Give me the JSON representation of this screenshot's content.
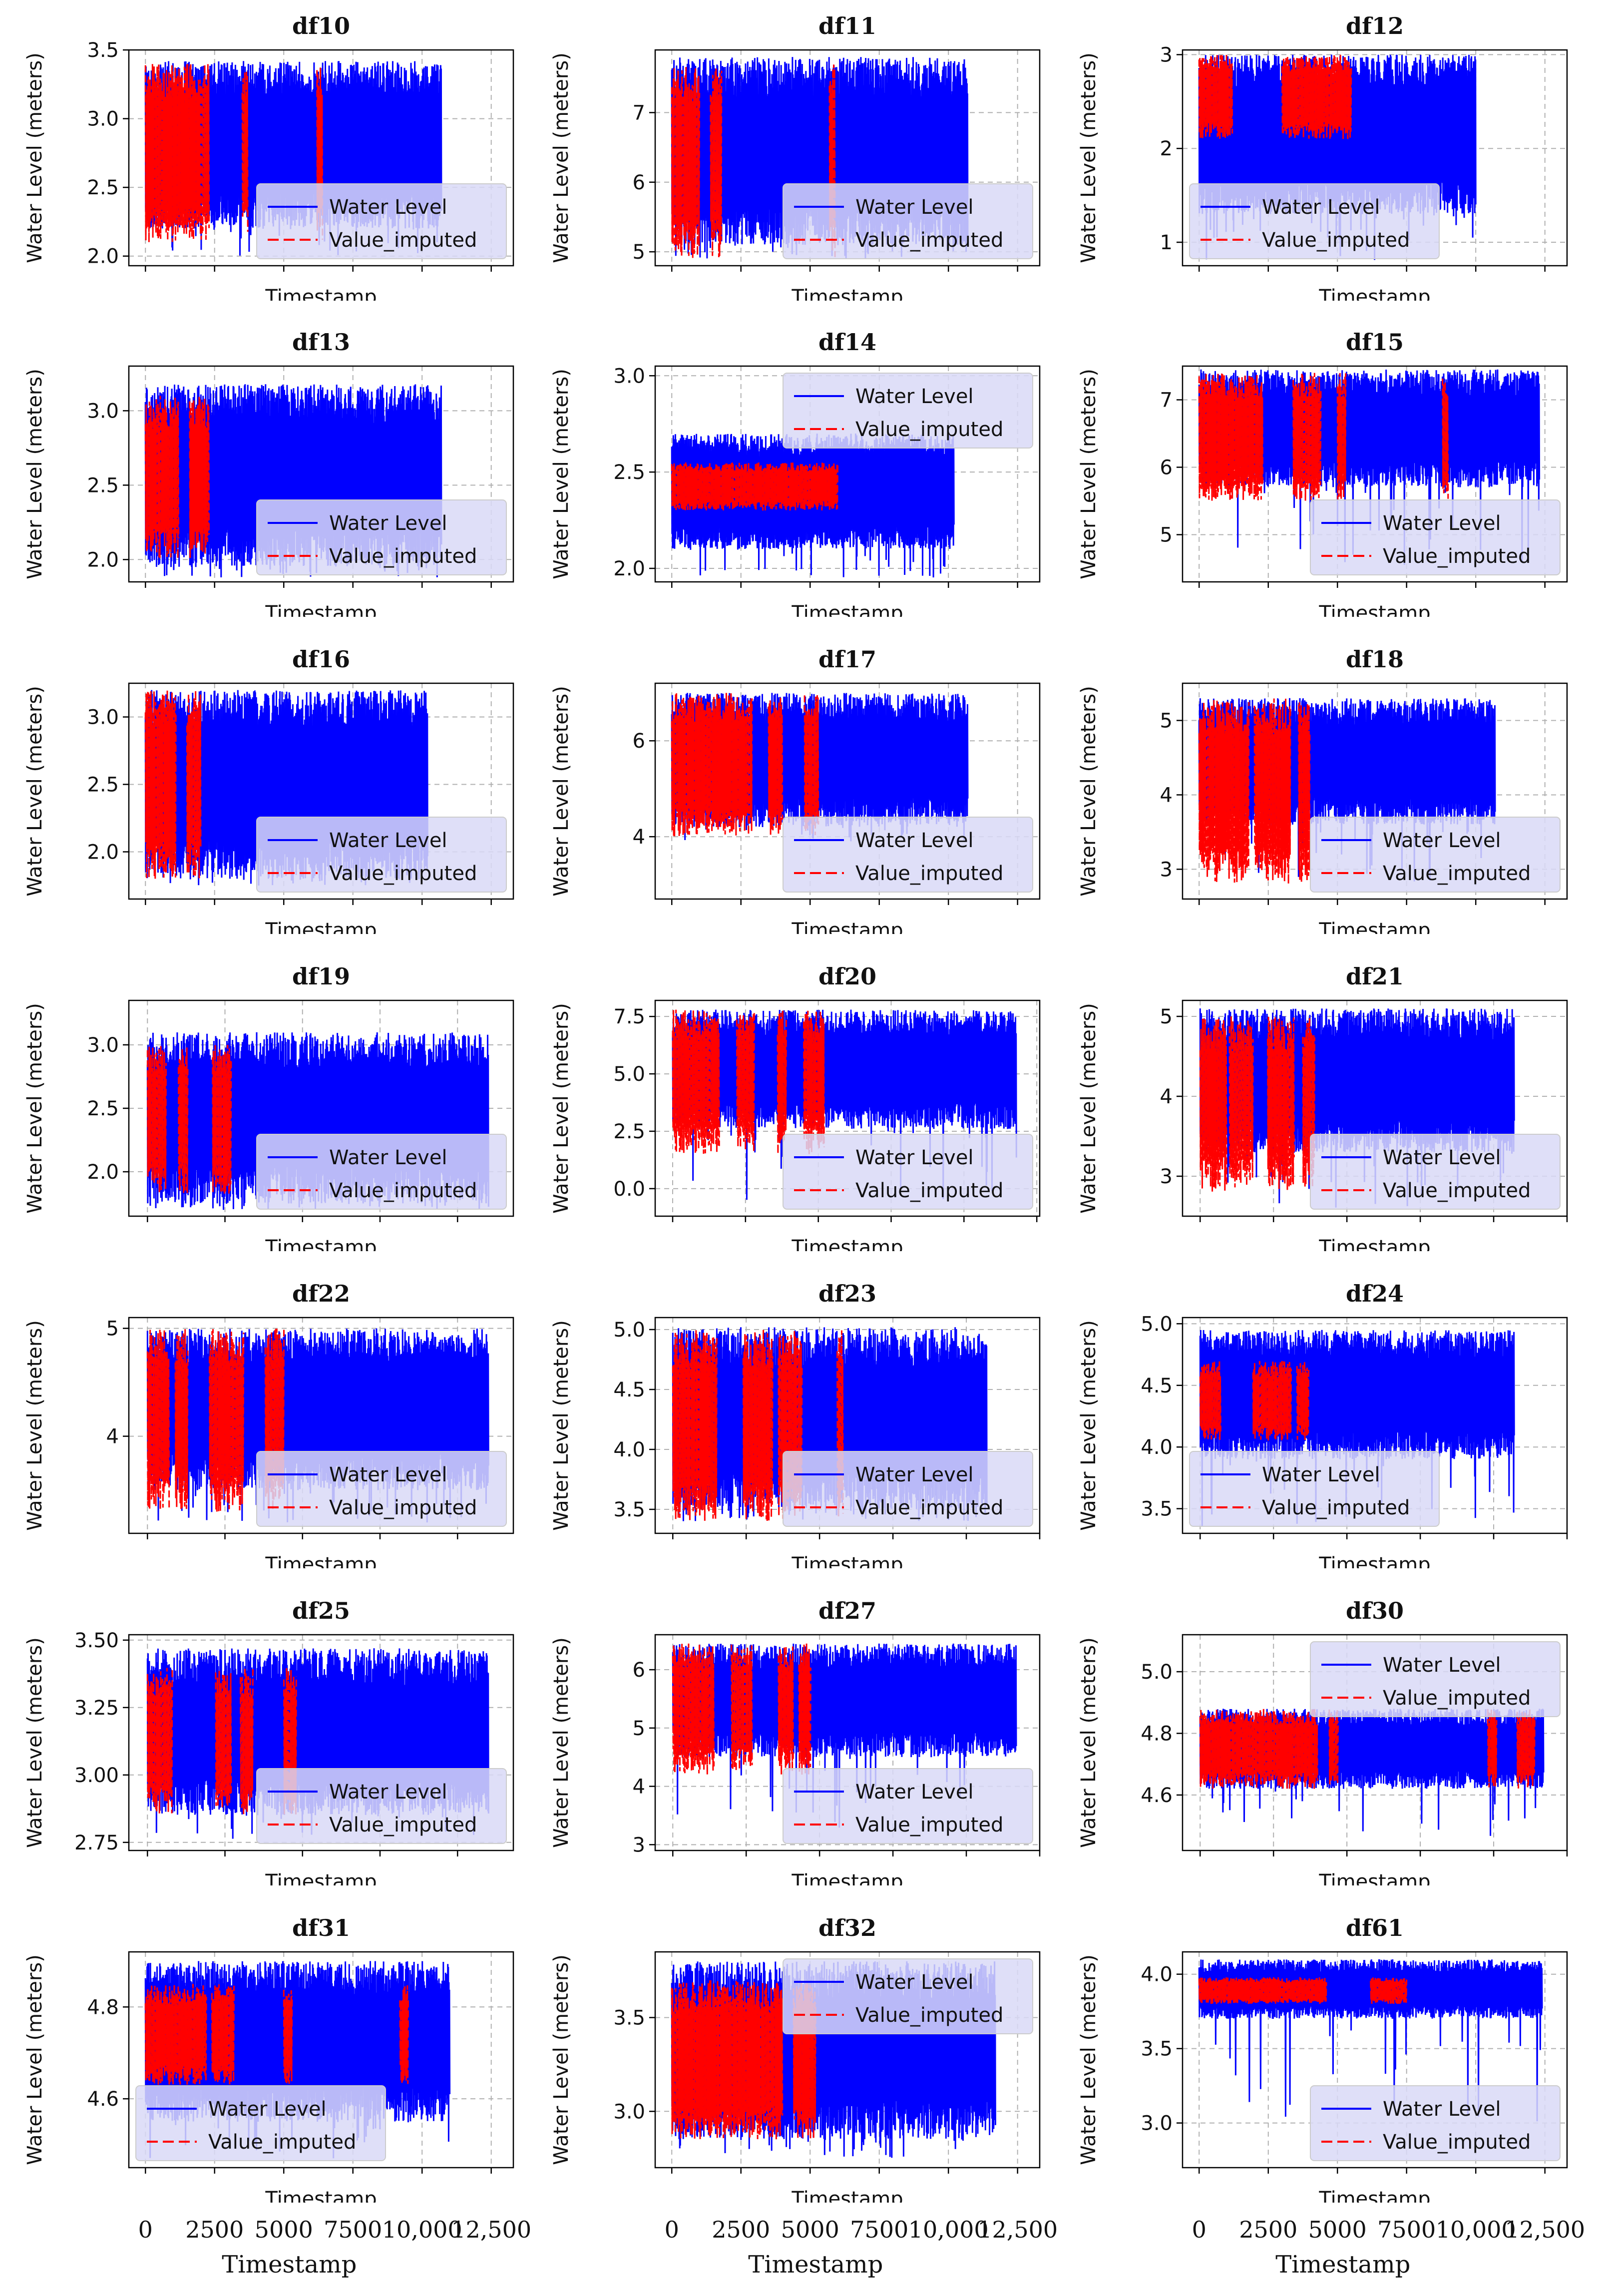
{
  "figure": {
    "colors": {
      "water_level": "#0000ff",
      "imputed": "#ff0000",
      "grid": "#b0b0b0",
      "legend_bg": "#d9d9f7"
    },
    "bottom_ticks": [
      "0",
      "2500",
      "5000",
      "7500",
      "10,000",
      "12,500"
    ],
    "bottom_xlabel": "Timestamp"
  },
  "chart_data": [
    {
      "type": "line",
      "title": "df10",
      "ylabel": "Water Level (meters)",
      "xlabel": "Timestamp",
      "ylim": [
        1.93,
        3.5
      ],
      "yticks": [
        "2.0",
        "2.5",
        "3.0",
        "3.5"
      ],
      "ytick_values": [
        2.0,
        2.5,
        3.0,
        3.5
      ],
      "xlim": [
        -600,
        13300
      ],
      "x_end": 10700,
      "legend_pos": "lower-right",
      "series": [
        {
          "name": "Water Level",
          "low": 2.2,
          "high": 3.42,
          "ext_low": 2.0
        },
        {
          "name": "Value_imputed",
          "bands": [
            [
              0,
              2300
            ],
            [
              3500,
              3700
            ],
            [
              6200,
              6400
            ]
          ],
          "low": 2.1,
          "high": 3.4
        }
      ]
    },
    {
      "type": "line",
      "title": "df11",
      "ylabel": "Water Level (meters)",
      "xlabel": "Timestamp",
      "ylim": [
        4.8,
        7.9
      ],
      "yticks": [
        "5",
        "6",
        "7"
      ],
      "ytick_values": [
        5,
        6,
        7
      ],
      "xlim": [
        -600,
        13300
      ],
      "x_end": 10700,
      "legend_pos": "lower-right",
      "series": [
        {
          "name": "Water Level",
          "low": 5.1,
          "high": 7.8,
          "ext_low": 4.9
        },
        {
          "name": "Value_imputed",
          "bands": [
            [
              0,
              1000
            ],
            [
              1400,
              1800
            ],
            [
              5700,
              5900
            ]
          ],
          "low": 4.9,
          "high": 7.7
        }
      ]
    },
    {
      "type": "line",
      "title": "df12",
      "ylabel": "Water Level (meters)",
      "xlabel": "Timestamp",
      "ylim": [
        0.75,
        3.05
      ],
      "yticks": [
        "1",
        "2",
        "3"
      ],
      "ytick_values": [
        1,
        2,
        3
      ],
      "xlim": [
        -600,
        13300
      ],
      "x_end": 10000,
      "legend_pos": "lower-left",
      "series": [
        {
          "name": "Water Level",
          "low": 1.3,
          "high": 3.0,
          "ext_low": 0.8
        },
        {
          "name": "Value_imputed",
          "bands": [
            [
              0,
              1200
            ],
            [
              3000,
              5500
            ]
          ],
          "low": 2.1,
          "high": 3.0
        }
      ]
    },
    {
      "type": "line",
      "title": "df13",
      "ylabel": "Water Level (meters)",
      "xlabel": "Timestamp",
      "ylim": [
        1.85,
        3.3
      ],
      "yticks": [
        "2.0",
        "2.5",
        "3.0"
      ],
      "ytick_values": [
        2.0,
        2.5,
        3.0
      ],
      "xlim": [
        -600,
        13300
      ],
      "x_end": 10700,
      "legend_pos": "lower-right",
      "series": [
        {
          "name": "Water Level",
          "low": 1.95,
          "high": 3.18,
          "ext_low": 1.88
        },
        {
          "name": "Value_imputed",
          "bands": [
            [
              0,
              1200
            ],
            [
              1600,
              2300
            ]
          ],
          "low": 2.0,
          "high": 3.1
        }
      ]
    },
    {
      "type": "line",
      "title": "df14",
      "ylabel": "Water Level (meters)",
      "xlabel": "Timestamp",
      "ylim": [
        1.93,
        3.05
      ],
      "yticks": [
        "2.0",
        "2.5",
        "3.0"
      ],
      "ytick_values": [
        2.0,
        2.5,
        3.0
      ],
      "xlim": [
        -600,
        13300
      ],
      "x_end": 10200,
      "legend_pos": "top-right",
      "series": [
        {
          "name": "Water Level",
          "low": 2.1,
          "high": 2.7,
          "ext_low": 1.95
        },
        {
          "name": "Value_imputed",
          "bands": [
            [
              0,
              6000
            ]
          ],
          "low": 2.3,
          "high": 2.55
        }
      ]
    },
    {
      "type": "line",
      "title": "df15",
      "ylabel": "Water Level (meters)",
      "xlabel": "Timestamp",
      "ylim": [
        4.3,
        7.5
      ],
      "yticks": [
        "5",
        "6",
        "7"
      ],
      "ytick_values": [
        5,
        6,
        7
      ],
      "xlim": [
        -600,
        13300
      ],
      "x_end": 12300,
      "legend_pos": "lower-right",
      "series": [
        {
          "name": "Water Level",
          "low": 5.7,
          "high": 7.45,
          "ext_low": 4.5
        },
        {
          "name": "Value_imputed",
          "bands": [
            [
              0,
              2300
            ],
            [
              3400,
              4400
            ],
            [
              5000,
              5300
            ],
            [
              8800,
              9000
            ]
          ],
          "low": 5.5,
          "high": 7.4
        }
      ]
    },
    {
      "type": "line",
      "title": "df16",
      "ylabel": "Water Level (meters)",
      "xlabel": "Timestamp",
      "ylim": [
        1.65,
        3.25
      ],
      "yticks": [
        "2.0",
        "2.5",
        "3.0"
      ],
      "ytick_values": [
        2.0,
        2.5,
        3.0
      ],
      "xlim": [
        -600,
        13300
      ],
      "x_end": 10200,
      "legend_pos": "lower-right",
      "series": [
        {
          "name": "Water Level",
          "low": 1.8,
          "high": 3.2,
          "ext_low": 1.75
        },
        {
          "name": "Value_imputed",
          "bands": [
            [
              0,
              1100
            ],
            [
              1500,
              2000
            ]
          ],
          "low": 1.8,
          "high": 3.2
        }
      ]
    },
    {
      "type": "line",
      "title": "df17",
      "ylabel": "Water Level (meters)",
      "xlabel": "Timestamp",
      "ylim": [
        2.7,
        7.2
      ],
      "yticks": [
        "4",
        "6"
      ],
      "ytick_values": [
        4,
        6
      ],
      "xlim": [
        -600,
        13300
      ],
      "x_end": 10700,
      "legend_pos": "lower-right",
      "series": [
        {
          "name": "Water Level",
          "low": 4.2,
          "high": 7.0,
          "ext_low": 3.9
        },
        {
          "name": "Value_imputed",
          "bands": [
            [
              0,
              2900
            ],
            [
              3500,
              4000
            ],
            [
              4800,
              5300
            ]
          ],
          "low": 4.0,
          "high": 7.0
        }
      ]
    },
    {
      "type": "line",
      "title": "df18",
      "ylabel": "Water Level (meters)",
      "xlabel": "Timestamp",
      "ylim": [
        2.6,
        5.5
      ],
      "yticks": [
        "3",
        "4",
        "5"
      ],
      "ytick_values": [
        3,
        4,
        5
      ],
      "xlim": [
        -600,
        13300
      ],
      "x_end": 10700,
      "legend_pos": "lower-right",
      "series": [
        {
          "name": "Water Level",
          "low": 3.6,
          "high": 5.3,
          "ext_low": 2.8
        },
        {
          "name": "Value_imputed",
          "bands": [
            [
              0,
              1800
            ],
            [
              2000,
              3300
            ],
            [
              3600,
              4000
            ]
          ],
          "low": 2.8,
          "high": 5.3
        }
      ]
    },
    {
      "type": "line",
      "title": "df19",
      "ylabel": "Water Level (meters)",
      "xlabel": "Timestamp",
      "ylim": [
        1.65,
        3.35
      ],
      "yticks": [
        "2.0",
        "2.5",
        "3.0"
      ],
      "ytick_values": [
        2.0,
        2.5,
        3.0
      ],
      "xlim": [
        -600,
        11800
      ],
      "x_end": 11000,
      "legend_pos": "lower-right",
      "series": [
        {
          "name": "Water Level",
          "low": 1.75,
          "high": 3.1,
          "ext_low": 1.7
        },
        {
          "name": "Value_imputed",
          "bands": [
            [
              0,
              600
            ],
            [
              1000,
              1300
            ],
            [
              2100,
              2700
            ]
          ],
          "low": 1.8,
          "high": 3.0
        }
      ]
    },
    {
      "type": "line",
      "title": "df20",
      "ylabel": "Water Level (meters)",
      "xlabel": "Timestamp",
      "ylim": [
        -1.2,
        8.2
      ],
      "yticks": [
        "0.0",
        "2.5",
        "5.0",
        "7.5"
      ],
      "ytick_values": [
        0.0,
        2.5,
        5.0,
        7.5
      ],
      "xlim": [
        -600,
        12600
      ],
      "x_end": 11800,
      "legend_pos": "lower-right",
      "series": [
        {
          "name": "Water Level",
          "low": 2.6,
          "high": 7.8,
          "ext_low": -0.5
        },
        {
          "name": "Value_imputed",
          "bands": [
            [
              0,
              1600
            ],
            [
              2200,
              2800
            ],
            [
              3600,
              3900
            ],
            [
              4500,
              5200
            ]
          ],
          "low": 1.5,
          "high": 7.8
        }
      ]
    },
    {
      "type": "line",
      "title": "df21",
      "ylabel": "Water Level (meters)",
      "xlabel": "Timestamp",
      "ylim": [
        2.5,
        5.2
      ],
      "yticks": [
        "3",
        "4",
        "5"
      ],
      "ytick_values": [
        3,
        4,
        5
      ],
      "xlim": [
        -600,
        12500
      ],
      "x_end": 10700,
      "legend_pos": "lower-right",
      "series": [
        {
          "name": "Water Level",
          "low": 3.3,
          "high": 5.1,
          "ext_low": 2.6
        },
        {
          "name": "Value_imputed",
          "bands": [
            [
              0,
              900
            ],
            [
              1000,
              1800
            ],
            [
              2300,
              3200
            ],
            [
              3500,
              3900
            ]
          ],
          "low": 2.8,
          "high": 5.0
        }
      ]
    },
    {
      "type": "line",
      "title": "df22",
      "ylabel": "Water Level (meters)",
      "xlabel": "Timestamp",
      "ylim": [
        3.1,
        5.1
      ],
      "yticks": [
        "4",
        "5"
      ],
      "ytick_values": [
        4,
        5
      ],
      "xlim": [
        -600,
        11800
      ],
      "x_end": 11000,
      "legend_pos": "lower-right",
      "series": [
        {
          "name": "Water Level",
          "low": 3.5,
          "high": 5.0,
          "ext_low": 3.2
        },
        {
          "name": "Value_imputed",
          "bands": [
            [
              0,
              700
            ],
            [
              900,
              1300
            ],
            [
              2000,
              3100
            ],
            [
              3800,
              4400
            ]
          ],
          "low": 3.3,
          "high": 5.0
        }
      ]
    },
    {
      "type": "line",
      "title": "df23",
      "ylabel": "Water Level (meters)",
      "xlabel": "Timestamp",
      "ylim": [
        3.3,
        5.1
      ],
      "yticks": [
        "3.5",
        "4.0",
        "4.5",
        "5.0"
      ],
      "ytick_values": [
        3.5,
        4.0,
        4.5,
        5.0
      ],
      "xlim": [
        -600,
        12500
      ],
      "x_end": 10700,
      "legend_pos": "lower-right",
      "series": [
        {
          "name": "Water Level",
          "low": 3.5,
          "high": 5.02,
          "ext_low": 3.4
        },
        {
          "name": "Value_imputed",
          "bands": [
            [
              0,
              1500
            ],
            [
              2400,
              3400
            ],
            [
              3600,
              4400
            ],
            [
              5600,
              5800
            ]
          ],
          "low": 3.4,
          "high": 5.0
        }
      ]
    },
    {
      "type": "line",
      "title": "df24",
      "ylabel": "Water Level (meters)",
      "xlabel": "Timestamp",
      "ylim": [
        3.3,
        5.05
      ],
      "yticks": [
        "3.5",
        "4.0",
        "4.5",
        "5.0"
      ],
      "ytick_values": [
        3.5,
        4.0,
        4.5,
        5.0
      ],
      "xlim": [
        -600,
        12500
      ],
      "x_end": 10700,
      "legend_pos": "lower-left",
      "series": [
        {
          "name": "Water Level",
          "low": 3.9,
          "high": 4.95,
          "ext_low": 3.35
        },
        {
          "name": "Value_imputed",
          "bands": [
            [
              0,
              700
            ],
            [
              1800,
              3100
            ],
            [
              3300,
              3700
            ]
          ],
          "low": 4.05,
          "high": 4.7
        }
      ]
    },
    {
      "type": "line",
      "title": "df25",
      "ylabel": "Water Level (meters)",
      "xlabel": "Timestamp",
      "ylim": [
        2.72,
        3.52
      ],
      "yticks": [
        "2.75",
        "3.00",
        "3.25",
        "3.50"
      ],
      "ytick_values": [
        2.75,
        3.0,
        3.25,
        3.5
      ],
      "xlim": [
        -600,
        11800
      ],
      "x_end": 11000,
      "legend_pos": "lower-right",
      "series": [
        {
          "name": "Water Level",
          "low": 2.85,
          "high": 3.47,
          "ext_low": 2.76
        },
        {
          "name": "Value_imputed",
          "bands": [
            [
              0,
              800
            ],
            [
              2200,
              2700
            ],
            [
              3000,
              3400
            ],
            [
              4400,
              4800
            ]
          ],
          "low": 2.85,
          "high": 3.4
        }
      ]
    },
    {
      "type": "line",
      "title": "df27",
      "ylabel": "Water Level (meters)",
      "xlabel": "Timestamp",
      "ylim": [
        2.9,
        6.6
      ],
      "yticks": [
        "3",
        "4",
        "5",
        "6"
      ],
      "ytick_values": [
        3,
        4,
        5,
        6
      ],
      "xlim": [
        -600,
        12500
      ],
      "x_end": 11700,
      "legend_pos": "lower-right",
      "series": [
        {
          "name": "Water Level",
          "low": 4.5,
          "high": 6.45,
          "ext_low": 3.1
        },
        {
          "name": "Value_imputed",
          "bands": [
            [
              0,
              1400
            ],
            [
              2000,
              2700
            ],
            [
              3600,
              4100
            ],
            [
              4300,
              4700
            ]
          ],
          "low": 4.2,
          "high": 6.45
        }
      ]
    },
    {
      "type": "line",
      "title": "df30",
      "ylabel": "Water Level (meters)",
      "xlabel": "Timestamp",
      "ylim": [
        4.42,
        5.12
      ],
      "yticks": [
        "4.6",
        "4.8",
        "5.0"
      ],
      "ytick_values": [
        4.6,
        4.8,
        5.0
      ],
      "xlim": [
        -600,
        12500
      ],
      "x_end": 11700,
      "legend_pos": "top-right",
      "series": [
        {
          "name": "Water Level",
          "low": 4.62,
          "high": 4.88,
          "ext_low": 4.46
        },
        {
          "name": "Value_imputed",
          "bands": [
            [
              0,
              4000
            ],
            [
              4400,
              4700
            ],
            [
              9800,
              10100
            ],
            [
              10800,
              11400
            ]
          ],
          "low": 4.62,
          "high": 4.88
        }
      ]
    },
    {
      "type": "line",
      "title": "df31",
      "ylabel": "Water Level (meters)",
      "xlabel": "Timestamp",
      "ylim": [
        4.45,
        4.92
      ],
      "yticks": [
        "4.6",
        "4.8"
      ],
      "ytick_values": [
        4.6,
        4.8
      ],
      "xlim": [
        -600,
        13300
      ],
      "x_end": 11000,
      "legend_pos": "lower-left",
      "series": [
        {
          "name": "Water Level",
          "low": 4.55,
          "high": 4.9,
          "ext_low": 4.47
        },
        {
          "name": "Value_imputed",
          "bands": [
            [
              0,
              2200
            ],
            [
              2400,
              3200
            ],
            [
              5000,
              5300
            ],
            [
              9200,
              9500
            ]
          ],
          "low": 4.63,
          "high": 4.85
        }
      ]
    },
    {
      "type": "line",
      "title": "df32",
      "ylabel": "Water Level (meters)",
      "xlabel": "Timestamp",
      "ylim": [
        2.7,
        3.85
      ],
      "yticks": [
        "3.0",
        "3.5"
      ],
      "ytick_values": [
        3.0,
        3.5
      ],
      "xlim": [
        -600,
        13300
      ],
      "x_end": 11700,
      "legend_pos": "top-right",
      "series": [
        {
          "name": "Water Level",
          "low": 2.85,
          "high": 3.8,
          "ext_low": 2.75
        },
        {
          "name": "Value_imputed",
          "bands": [
            [
              0,
              4000
            ],
            [
              4400,
              5200
            ]
          ],
          "low": 2.85,
          "high": 3.7
        }
      ]
    },
    {
      "type": "line",
      "title": "df61",
      "ylabel": "Water Level (meters)",
      "xlabel": "Timestamp",
      "ylim": [
        2.7,
        4.15
      ],
      "yticks": [
        "3.0",
        "3.5",
        "4.0"
      ],
      "ytick_values": [
        3.0,
        3.5,
        4.0
      ],
      "xlim": [
        -600,
        13300
      ],
      "x_end": 12400,
      "legend_pos": "lower-right",
      "series": [
        {
          "name": "Water Level",
          "low": 3.7,
          "high": 4.1,
          "ext_low": 3.0
        },
        {
          "name": "Value_imputed",
          "bands": [
            [
              0,
              4600
            ],
            [
              6200,
              7500
            ]
          ],
          "low": 3.8,
          "high": 3.98
        }
      ]
    }
  ]
}
